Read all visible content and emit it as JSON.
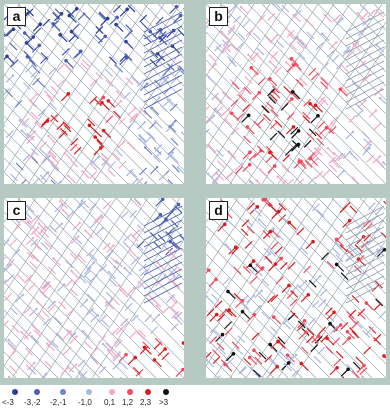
{
  "panels": [
    {
      "id": "a",
      "label": "a",
      "blob": "blue-outer-red-center"
    },
    {
      "id": "b",
      "label": "b",
      "blob": "mixed-dark-red-center"
    },
    {
      "id": "c",
      "label": "c",
      "blob": "pink-west-red-southeast"
    },
    {
      "id": "d",
      "label": "d",
      "blob": "red-scattered"
    }
  ],
  "legend": [
    {
      "label": "<-3",
      "color": "#2b3f97"
    },
    {
      "label": "-3,-2",
      "color": "#4a5fb3"
    },
    {
      "label": "-2,-1",
      "color": "#6f84cb"
    },
    {
      "label": "-1,0",
      "color": "#a9b8e3"
    },
    {
      "label": "0,1",
      "color": "#f2a9c4"
    },
    {
      "label": "1,2",
      "color": "#f04a5c"
    },
    {
      "label": "2,3",
      "color": "#d91c1c"
    },
    {
      "label": ">3",
      "color": "#111111"
    }
  ],
  "colors": {
    "street_line": "#8c9aa6",
    "background": "#b7c9c3"
  }
}
